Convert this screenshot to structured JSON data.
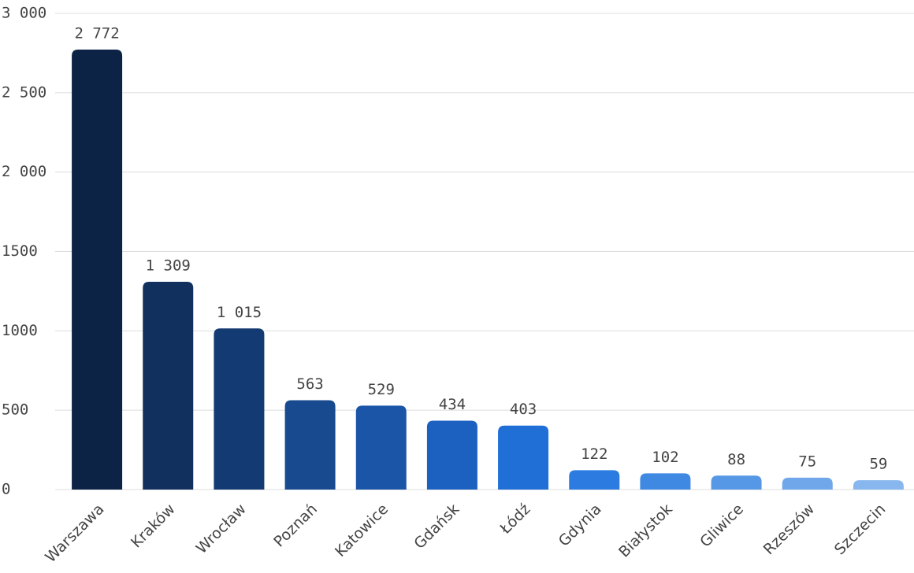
{
  "chart_data": {
    "type": "bar",
    "categories": [
      "Warszawa",
      "Kraków",
      "Wrocław",
      "Poznań",
      "Katowice",
      "Gdańsk",
      "Łódź",
      "Gdynia",
      "Białystok",
      "Gliwice",
      "Rzeszów",
      "Szczecin"
    ],
    "values": [
      2772,
      1309,
      1015,
      563,
      529,
      434,
      403,
      122,
      102,
      88,
      75,
      59
    ],
    "value_labels": [
      "2 772",
      "1 309",
      "1 015",
      "563",
      "529",
      "434",
      "403",
      "122",
      "102",
      "88",
      "75",
      "59"
    ],
    "colors": [
      "#0d2345",
      "#11305e",
      "#133a72",
      "#184a8f",
      "#1a55a8",
      "#1c61c0",
      "#1f6fd6",
      "#2c7be0",
      "#3f89e3",
      "#5698e6",
      "#6fa7ea",
      "#87b7ee"
    ],
    "ylim": [
      0,
      3000
    ],
    "yticks": [
      0,
      500,
      1000,
      1500,
      {
        "value": 2000,
        "label": "2 000"
      },
      {
        "value": 2500,
        "label": "2 500"
      },
      {
        "value": 3000,
        "label": "3 000"
      }
    ],
    "grid": true
  }
}
